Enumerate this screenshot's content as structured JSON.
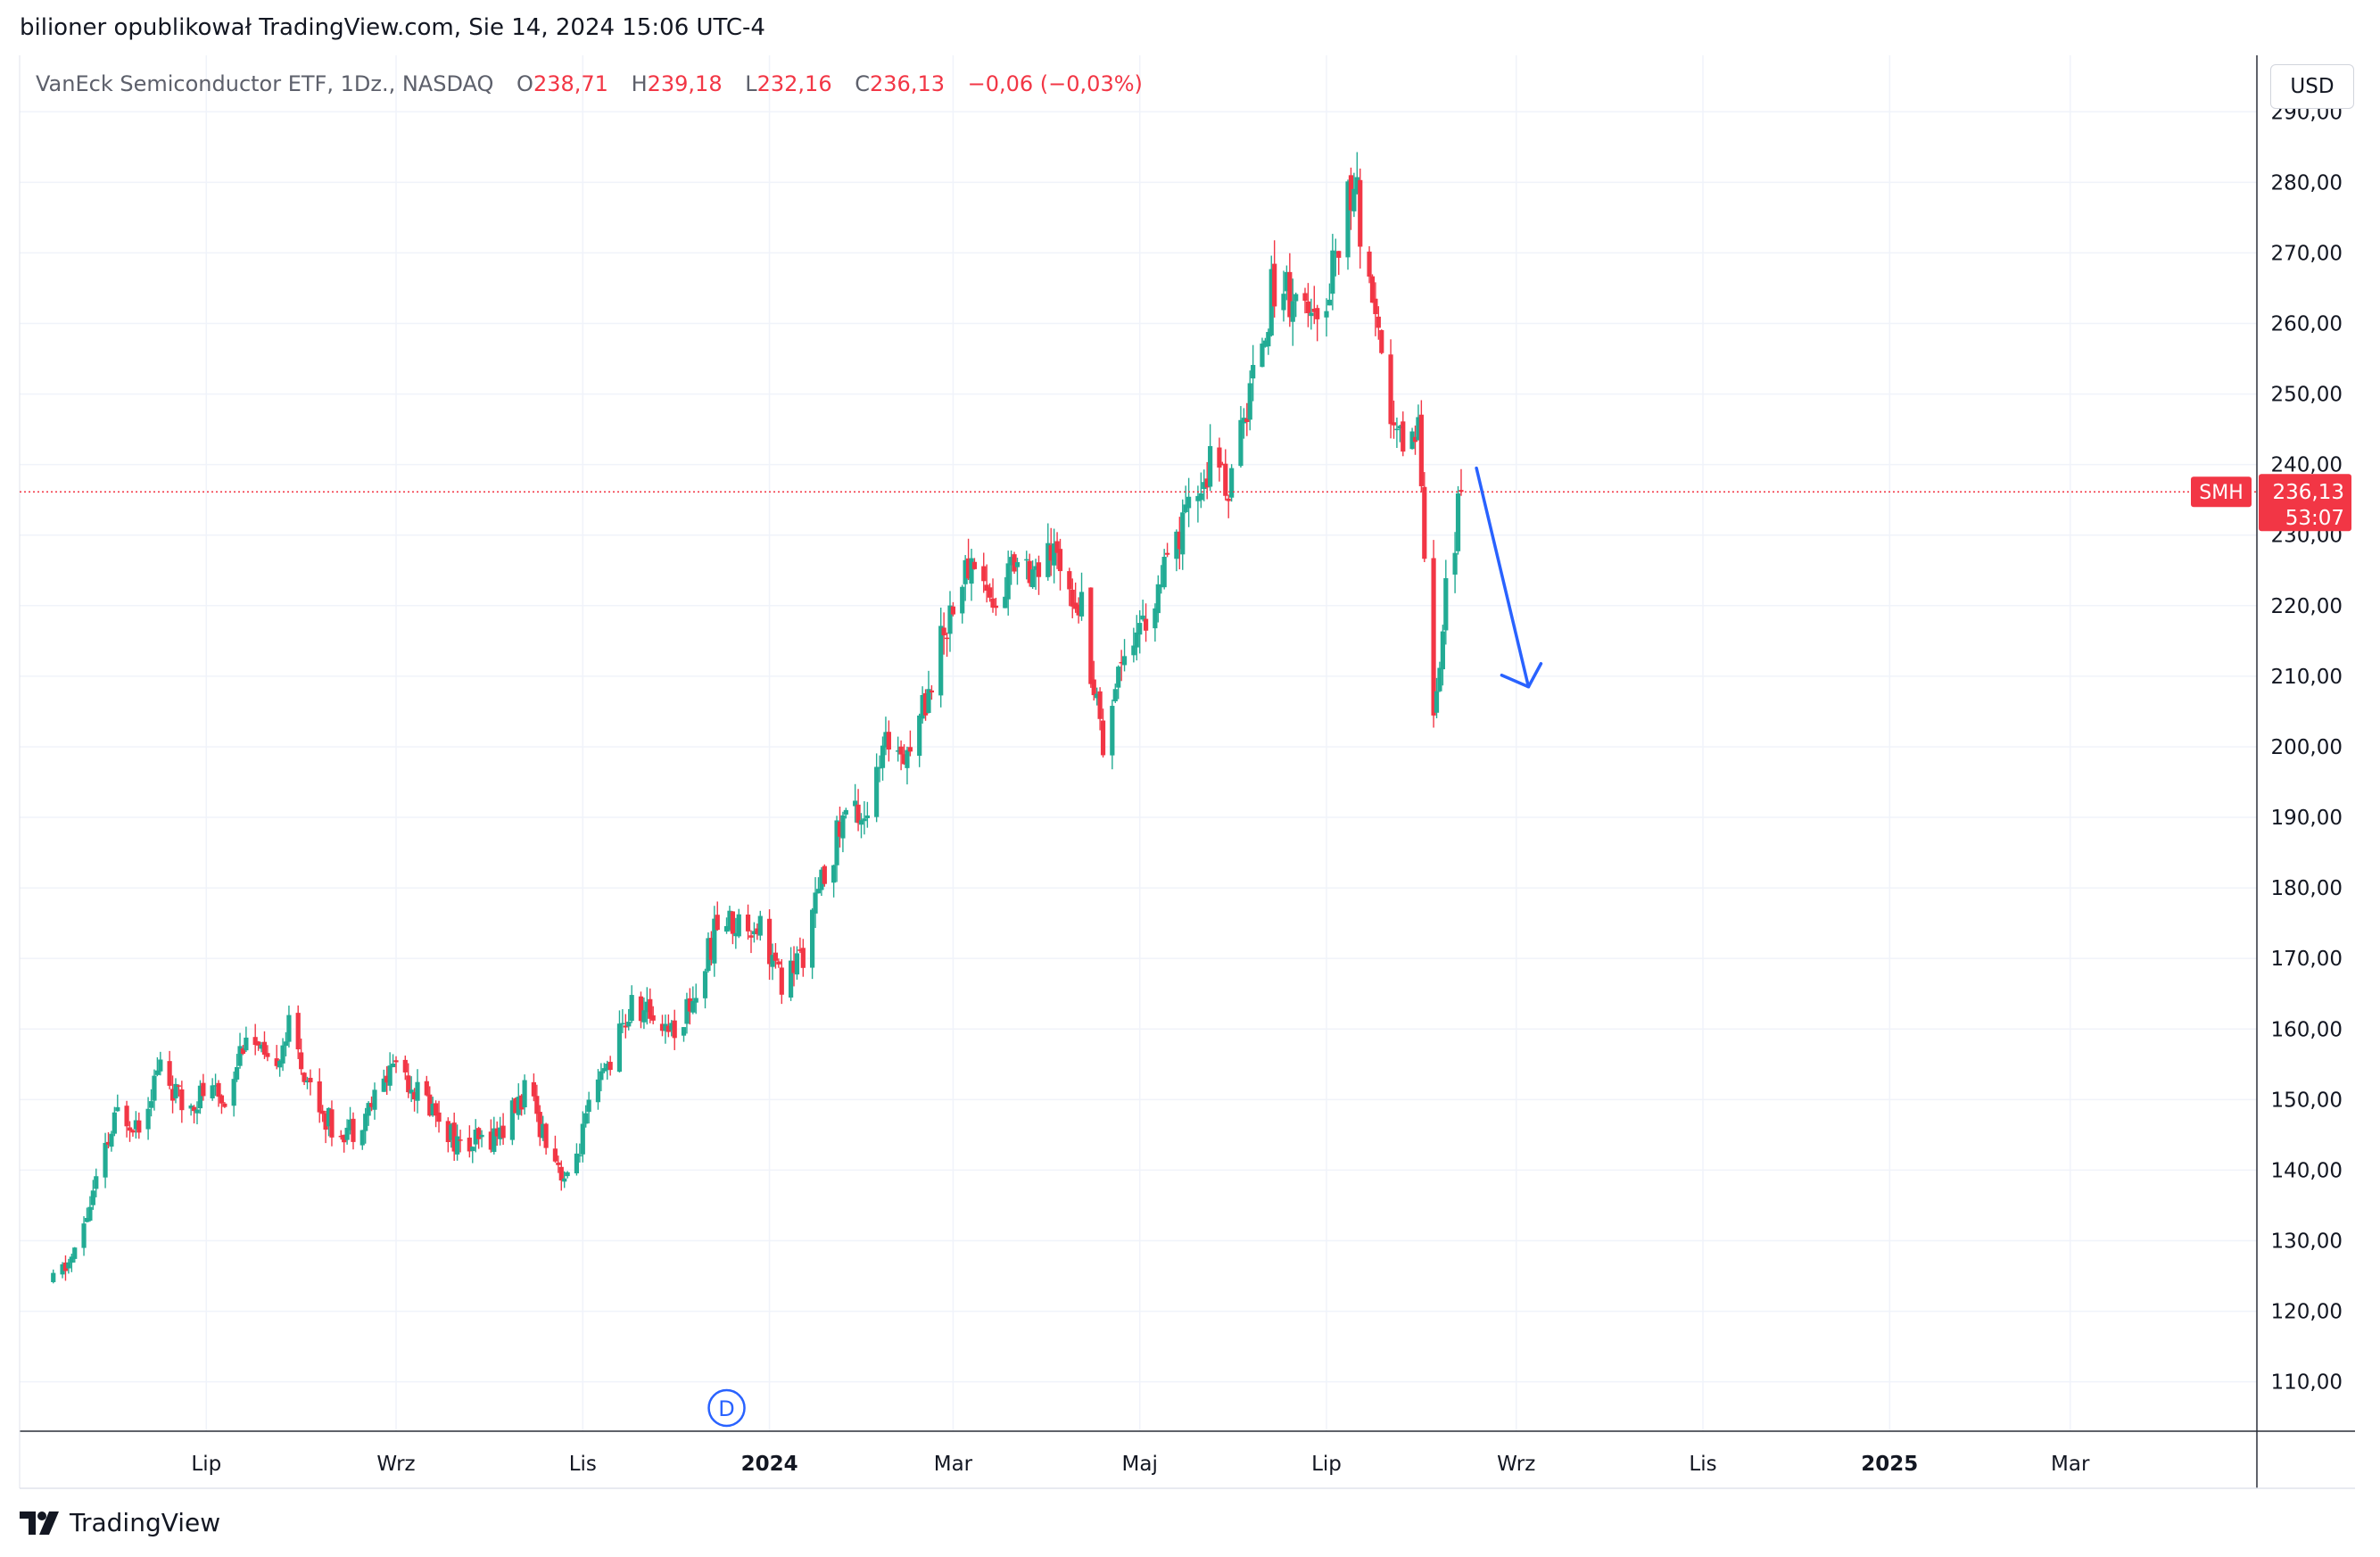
{
  "header": {
    "published_by": "bilioner opublikował TradingView.com, Sie 14, 2024 15:06 UTC-4"
  },
  "legend": {
    "symbol": "VanEck Semiconductor ETF, 1Dz., NASDAQ",
    "open_label": "O",
    "open_value": "238,71",
    "high_label": "H",
    "high_value": "239,18",
    "low_label": "L",
    "low_value": "232,16",
    "close_label": "C",
    "close_value": "236,13",
    "change": "−0,06 (−0,03%)"
  },
  "currency": "USD",
  "price_marker": {
    "ticker": "SMH",
    "price": "236,13",
    "countdown": "53:07"
  },
  "event_marker": "D",
  "footer": {
    "brand": "TradingView"
  },
  "colors": {
    "up": "#22ab94",
    "down": "#f23645",
    "grid": "#f0f3fa",
    "arrow": "#2962ff",
    "price_line": "#f23645"
  },
  "chart_data": {
    "type": "candlestick",
    "title": "VanEck Semiconductor ETF, 1Dz., NASDAQ",
    "ylim": [
      103,
      298
    ],
    "y_ticks": [
      "290,00",
      "280,00",
      "270,00",
      "260,00",
      "250,00",
      "240,00",
      "230,00",
      "220,00",
      "210,00",
      "200,00",
      "190,00",
      "180,00",
      "170,00",
      "160,00",
      "150,00",
      "140,00",
      "130,00",
      "120,00",
      "110,00"
    ],
    "x_ticks": [
      {
        "label": "Lip",
        "date": "2023-07-01"
      },
      {
        "label": "Wrz",
        "date": "2023-09-01"
      },
      {
        "label": "Lis",
        "date": "2023-11-01"
      },
      {
        "label": "2024",
        "date": "2024-01-01"
      },
      {
        "label": "Mar",
        "date": "2024-03-01"
      },
      {
        "label": "Maj",
        "date": "2024-05-01"
      },
      {
        "label": "Lip",
        "date": "2024-07-01"
      },
      {
        "label": "Wrz",
        "date": "2024-09-01"
      },
      {
        "label": "Lis",
        "date": "2024-11-01"
      },
      {
        "label": "2025",
        "date": "2025-01-01"
      },
      {
        "label": "Mar",
        "date": "2025-03-01"
      }
    ],
    "last_price": 236.13,
    "close_path": [
      {
        "date": "2023-05-12",
        "close": 124
      },
      {
        "date": "2023-05-19",
        "close": 128
      },
      {
        "date": "2023-05-26",
        "close": 138
      },
      {
        "date": "2023-06-02",
        "close": 148
      },
      {
        "date": "2023-06-09",
        "close": 147
      },
      {
        "date": "2023-06-16",
        "close": 155
      },
      {
        "date": "2023-06-23",
        "close": 149
      },
      {
        "date": "2023-06-30",
        "close": 151
      },
      {
        "date": "2023-07-07",
        "close": 150
      },
      {
        "date": "2023-07-14",
        "close": 160
      },
      {
        "date": "2023-07-21",
        "close": 154
      },
      {
        "date": "2023-07-28",
        "close": 160
      },
      {
        "date": "2023-08-04",
        "close": 152
      },
      {
        "date": "2023-08-11",
        "close": 146
      },
      {
        "date": "2023-08-18",
        "close": 146
      },
      {
        "date": "2023-08-25",
        "close": 150
      },
      {
        "date": "2023-09-01",
        "close": 156
      },
      {
        "date": "2023-09-08",
        "close": 151
      },
      {
        "date": "2023-09-15",
        "close": 148
      },
      {
        "date": "2023-09-22",
        "close": 143
      },
      {
        "date": "2023-09-29",
        "close": 144
      },
      {
        "date": "2023-10-06",
        "close": 146
      },
      {
        "date": "2023-10-13",
        "close": 151
      },
      {
        "date": "2023-10-20",
        "close": 145
      },
      {
        "date": "2023-10-27",
        "close": 138
      },
      {
        "date": "2023-11-03",
        "close": 148
      },
      {
        "date": "2023-11-10",
        "close": 156
      },
      {
        "date": "2023-11-17",
        "close": 163
      },
      {
        "date": "2023-11-24",
        "close": 162
      },
      {
        "date": "2023-12-01",
        "close": 160
      },
      {
        "date": "2023-12-08",
        "close": 165
      },
      {
        "date": "2023-12-15",
        "close": 175
      },
      {
        "date": "2023-12-22",
        "close": 175
      },
      {
        "date": "2023-12-29",
        "close": 175
      },
      {
        "date": "2024-01-05",
        "close": 166
      },
      {
        "date": "2024-01-12",
        "close": 171
      },
      {
        "date": "2024-01-19",
        "close": 182
      },
      {
        "date": "2024-01-26",
        "close": 191
      },
      {
        "date": "2024-02-02",
        "close": 191
      },
      {
        "date": "2024-02-09",
        "close": 201
      },
      {
        "date": "2024-02-16",
        "close": 200
      },
      {
        "date": "2024-02-23",
        "close": 210
      },
      {
        "date": "2024-03-01",
        "close": 221
      },
      {
        "date": "2024-03-08",
        "close": 227
      },
      {
        "date": "2024-03-15",
        "close": 219
      },
      {
        "date": "2024-03-22",
        "close": 228
      },
      {
        "date": "2024-03-29",
        "close": 225
      },
      {
        "date": "2024-04-05",
        "close": 227
      },
      {
        "date": "2024-04-12",
        "close": 220
      },
      {
        "date": "2024-04-19",
        "close": 201
      },
      {
        "date": "2024-04-26",
        "close": 215
      },
      {
        "date": "2024-05-03",
        "close": 218
      },
      {
        "date": "2024-05-10",
        "close": 225
      },
      {
        "date": "2024-05-17",
        "close": 233
      },
      {
        "date": "2024-05-24",
        "close": 240
      },
      {
        "date": "2024-05-31",
        "close": 237
      },
      {
        "date": "2024-06-07",
        "close": 253
      },
      {
        "date": "2024-06-14",
        "close": 266
      },
      {
        "date": "2024-06-21",
        "close": 264
      },
      {
        "date": "2024-06-28",
        "close": 258
      },
      {
        "date": "2024-07-05",
        "close": 273
      },
      {
        "date": "2024-07-10",
        "close": 280
      },
      {
        "date": "2024-07-17",
        "close": 258
      },
      {
        "date": "2024-07-24",
        "close": 243
      },
      {
        "date": "2024-07-31",
        "close": 246
      },
      {
        "date": "2024-08-05",
        "close": 205
      },
      {
        "date": "2024-08-09",
        "close": 222
      },
      {
        "date": "2024-08-14",
        "close": 236.13
      }
    ]
  }
}
